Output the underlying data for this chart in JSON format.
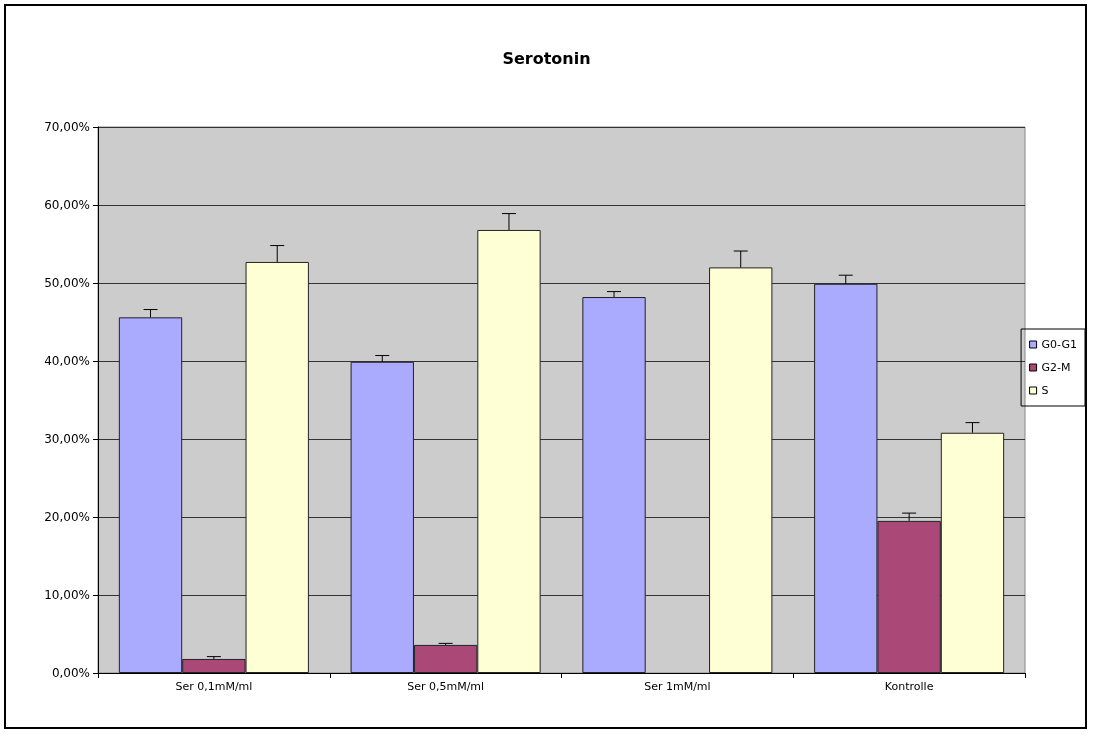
{
  "chart_data": {
    "type": "bar",
    "title": "Serotonin",
    "categories": [
      "Ser 0,1mM/ml",
      "Ser 0,5mM/ml",
      "Ser 1mM/ml",
      "Kontrolle"
    ],
    "series": [
      {
        "name": "G0-G1",
        "color": "#aaaaff",
        "values": [
          45.6,
          39.9,
          48.2,
          49.9
        ],
        "errors": [
          [
            45.6,
            46.6
          ],
          [
            39.9,
            40.7
          ],
          [
            48.2,
            48.9
          ],
          [
            49.9,
            51.0
          ]
        ]
      },
      {
        "name": "G2-M",
        "color": "#aa4977",
        "values": [
          1.8,
          3.6,
          null,
          19.5
        ],
        "errors": [
          [
            1.8,
            2.1
          ],
          [
            3.6,
            3.8
          ],
          null,
          [
            19.5,
            20.5
          ]
        ]
      },
      {
        "name": "S",
        "color": "#ffffd5",
        "values": [
          52.7,
          56.8,
          52.0,
          30.8
        ],
        "errors": [
          [
            52.7,
            54.8
          ],
          [
            56.8,
            58.9
          ],
          [
            52.0,
            54.1
          ],
          [
            30.8,
            32.1
          ]
        ]
      }
    ],
    "ylim": [
      0,
      70
    ],
    "yticks": [
      {
        "value": 0,
        "label": "0,00%"
      },
      {
        "value": 10,
        "label": "10,00%"
      },
      {
        "value": 20,
        "label": "20,00%"
      },
      {
        "value": 30,
        "label": "30,00%"
      },
      {
        "value": 40,
        "label": "40,00%"
      },
      {
        "value": 50,
        "label": "50,00%"
      },
      {
        "value": 60,
        "label": "60,00%"
      },
      {
        "value": 70,
        "label": "70,00%"
      }
    ],
    "grid": "y",
    "legend": "right"
  }
}
